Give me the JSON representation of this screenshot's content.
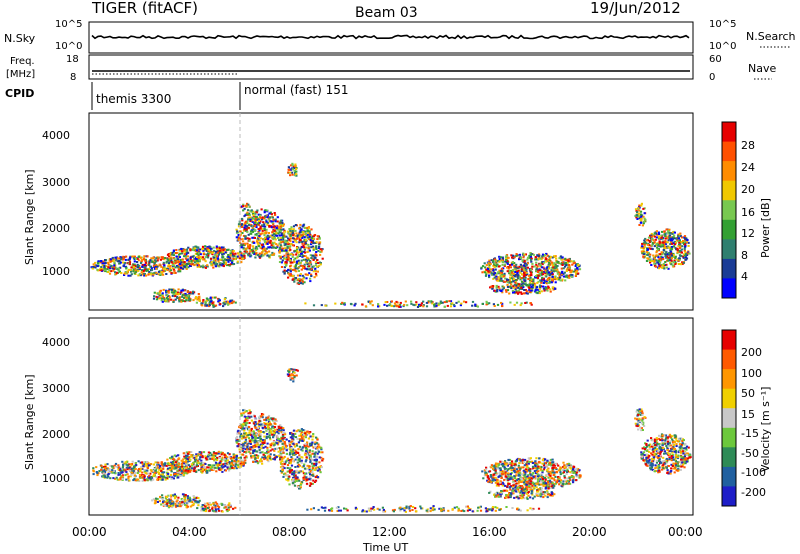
{
  "header": {
    "radar": "TIGER (fitACF)",
    "beam": "Beam 03",
    "date": "19/Jun/2012"
  },
  "status_panels": {
    "nsky_label": "N.Sky",
    "nsky_ticks": [
      "10^5",
      "10^0"
    ],
    "nsearch_label": "N.Search",
    "nsearch_ticks": [
      "10^5",
      "10^0"
    ],
    "freq_label_1": "Freq.",
    "freq_label_2": "[MHz]",
    "freq_ticks": [
      "18",
      "8"
    ],
    "nave_label": "Nave",
    "nave_ticks": [
      "60",
      "0"
    ],
    "cpid_label": "CPID",
    "cpid_segments": [
      "themis 3300",
      "normal (fast) 151"
    ]
  },
  "chart_data": [
    {
      "type": "heatmap",
      "name": "power",
      "ylabel": "Slant Range [km]",
      "yticks": [
        "4000",
        "3000",
        "2000",
        "1000"
      ],
      "colorbar_label": "Power [dB]",
      "colorbar_ticks": [
        "28",
        "24",
        "20",
        "16",
        "12",
        "8",
        "4"
      ],
      "colors": [
        "#0000ff",
        "#1a3c96",
        "#2f7f6f",
        "#33a033",
        "#78c850",
        "#f0c800",
        "#ff8c00",
        "#ff5000",
        "#e60000"
      ]
    },
    {
      "type": "heatmap",
      "name": "velocity",
      "ylabel": "Slant Range [km]",
      "yticks": [
        "4000",
        "3000",
        "2000",
        "1000"
      ],
      "colorbar_label": "Velocity [m s⁻¹]",
      "colorbar_ticks": [
        "200",
        "100",
        "50",
        "15",
        "-15",
        "-50",
        "-100",
        "-200"
      ],
      "colors": [
        "#1e1ec8",
        "#2060a0",
        "#2e8b57",
        "#6cc83c",
        "#c8c8c8",
        "#f0d000",
        "#ff9600",
        "#ff5a00",
        "#e60000"
      ]
    }
  ],
  "time_axis": {
    "ticks": [
      "00:00",
      "04:00",
      "08:00",
      "12:00",
      "16:00",
      "20:00",
      "00:00"
    ],
    "label": "Time UT"
  }
}
